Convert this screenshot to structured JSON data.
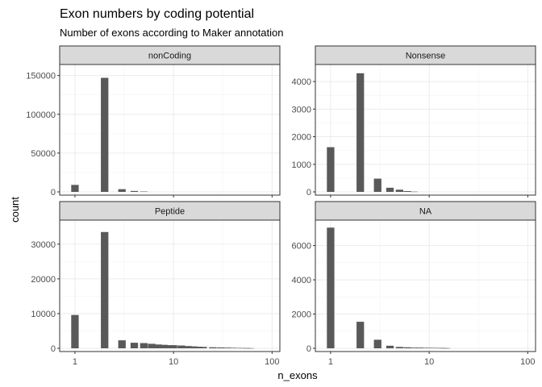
{
  "title": "Exon numbers by coding potential",
  "subtitle": "Number of exons according to Maker annotation",
  "chart_data": {
    "type": "bar",
    "xlabel": "n_exons",
    "ylabel": "count",
    "x_scale": "log10",
    "xlim": [
      0.7,
      120
    ],
    "x_ticks": [
      1,
      10,
      100
    ],
    "x_tick_labels": [
      "1",
      "10",
      "100"
    ],
    "grid": true,
    "bar_color": "#595959",
    "panels": [
      {
        "name": "nonCoding",
        "ylim": [
          0,
          160000
        ],
        "y_ticks": [
          0,
          50000,
          100000,
          150000
        ],
        "y_tick_labels": [
          "0",
          "50000",
          "100000",
          "150000"
        ],
        "x": [
          1,
          2,
          3,
          4,
          5
        ],
        "values": [
          9000,
          147000,
          3500,
          1200,
          500
        ]
      },
      {
        "name": "Nonsense",
        "ylim": [
          0,
          4500
        ],
        "y_ticks": [
          0,
          1000,
          2000,
          3000,
          4000
        ],
        "y_tick_labels": [
          "0",
          "1000",
          "2000",
          "3000",
          "4000"
        ],
        "x": [
          1,
          2,
          3,
          4,
          5,
          6,
          7
        ],
        "values": [
          1620,
          4300,
          480,
          150,
          80,
          30,
          10
        ]
      },
      {
        "name": "Peptide",
        "ylim": [
          0,
          36000
        ],
        "y_ticks": [
          0,
          10000,
          20000,
          30000
        ],
        "y_tick_labels": [
          "0",
          "10000",
          "20000",
          "30000"
        ],
        "x": [
          1,
          2,
          3,
          4,
          5,
          6,
          7,
          8,
          9,
          10,
          12,
          14,
          16,
          18,
          20,
          25,
          30,
          35,
          40,
          45,
          50,
          55,
          60
        ],
        "values": [
          9600,
          33500,
          2300,
          1600,
          1500,
          1300,
          1100,
          1000,
          900,
          900,
          800,
          650,
          550,
          450,
          400,
          300,
          250,
          200,
          150,
          100,
          80,
          60,
          40
        ]
      },
      {
        "name": "NA",
        "ylim": [
          0,
          7300
        ],
        "y_ticks": [
          0,
          2000,
          4000,
          6000
        ],
        "y_tick_labels": [
          "0",
          "2000",
          "4000",
          "6000"
        ],
        "x": [
          1,
          2,
          3,
          4,
          5,
          6,
          7,
          8,
          9,
          10,
          11,
          12,
          13,
          14,
          15
        ],
        "values": [
          7050,
          1550,
          500,
          150,
          80,
          60,
          40,
          40,
          30,
          30,
          25,
          20,
          20,
          15,
          10
        ]
      }
    ]
  }
}
